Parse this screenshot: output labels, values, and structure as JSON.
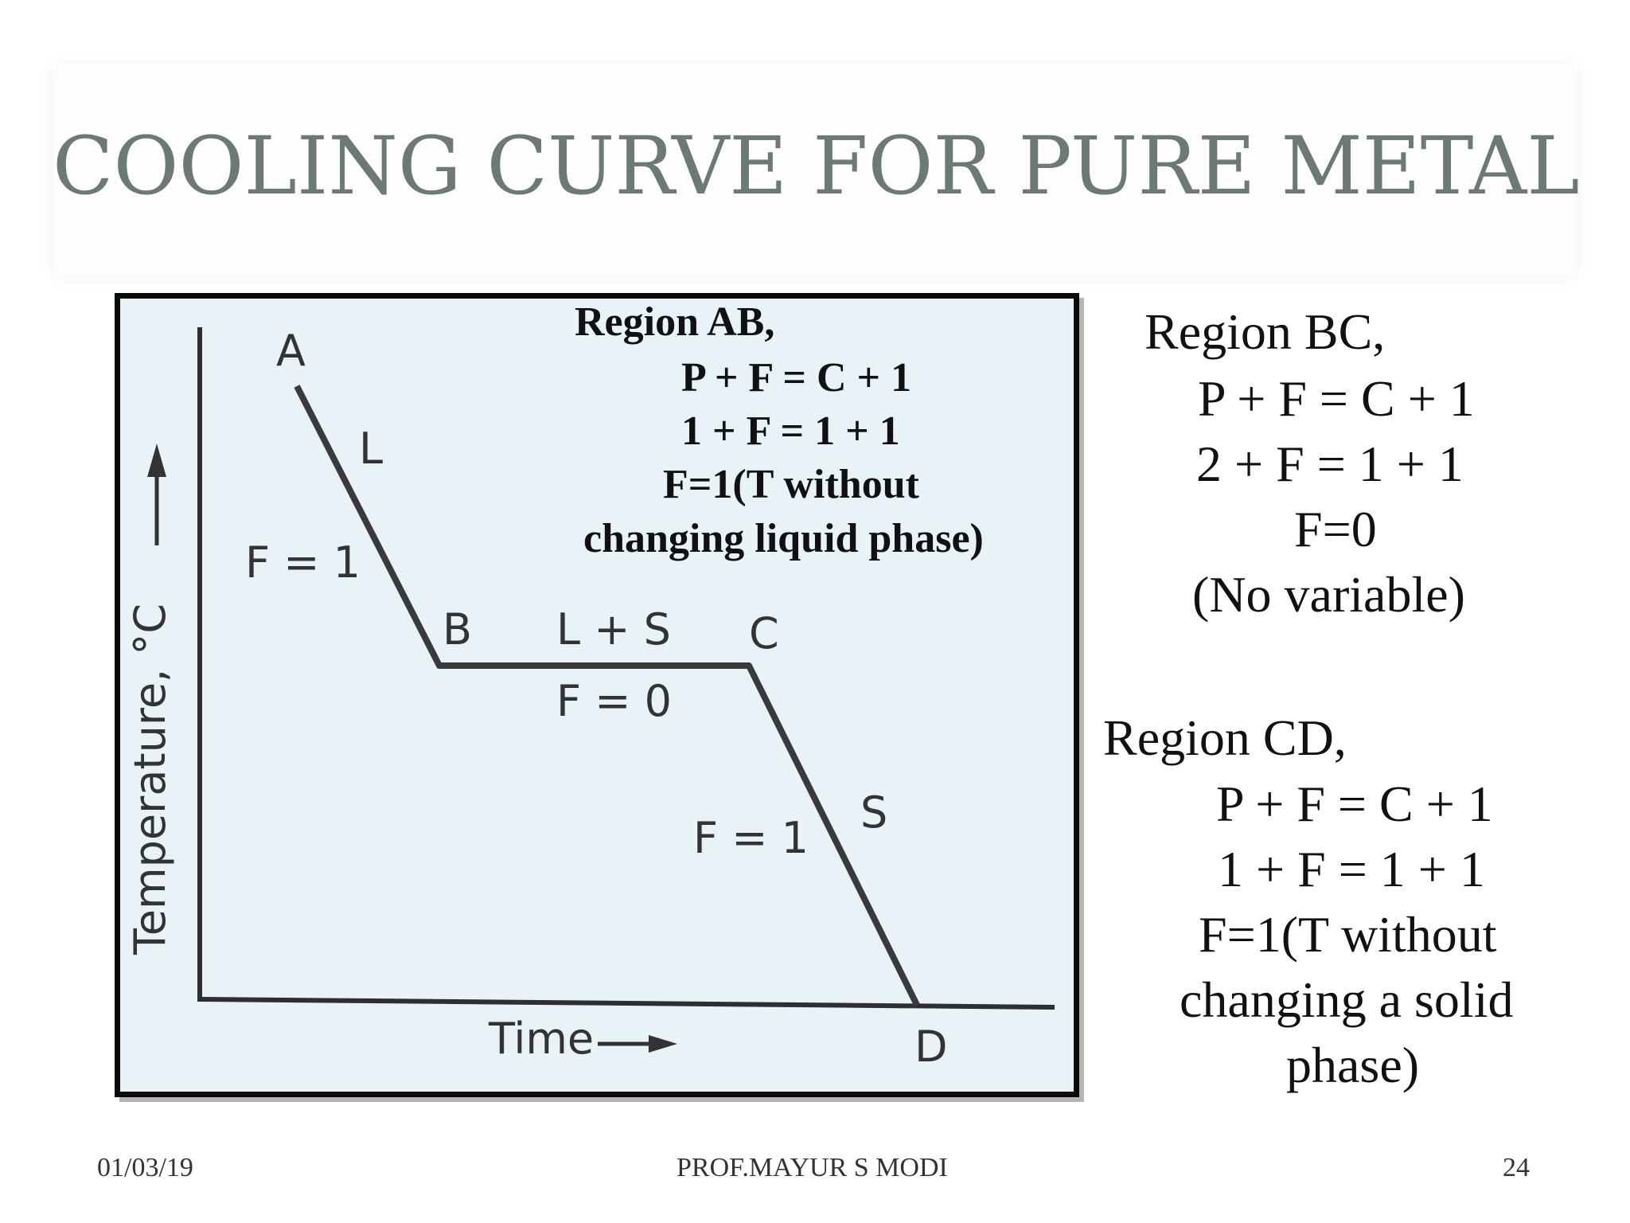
{
  "slide": {
    "title": "COOLING CURVE FOR PURE METAL"
  },
  "diagram": {
    "axis_y_label": "Temperature, °C",
    "axis_x_label": "Time",
    "points": {
      "a": "A",
      "b": "B",
      "c": "C",
      "d": "D"
    },
    "phase_liquid": "L",
    "phase_mixed": "L + S",
    "phase_solid": "S",
    "f_ab": "F = 1",
    "f_bc": "F = 0",
    "f_cd": "F = 1",
    "region_ab": {
      "heading": "Region AB,",
      "line1": "P + F = C + 1",
      "line2": "1 + F = 1 + 1",
      "line3": "F=1(T without",
      "line4": "changing liquid phase)"
    }
  },
  "region_bc": {
    "heading": "Region BC,",
    "line1": "P + F = C + 1",
    "line2": "2 + F = 1 + 1",
    "line3": "F=0",
    "line4": "(No variable)"
  },
  "region_cd": {
    "heading": "Region CD,",
    "line1": "P + F = C + 1",
    "line2": "1 + F = 1 + 1",
    "line3": "F=1(T without",
    "line4": "changing a solid",
    "line5": "phase)"
  },
  "footer": {
    "date": "01/03/19",
    "author": "PROF.MAYUR S MODI",
    "page": "24"
  }
}
